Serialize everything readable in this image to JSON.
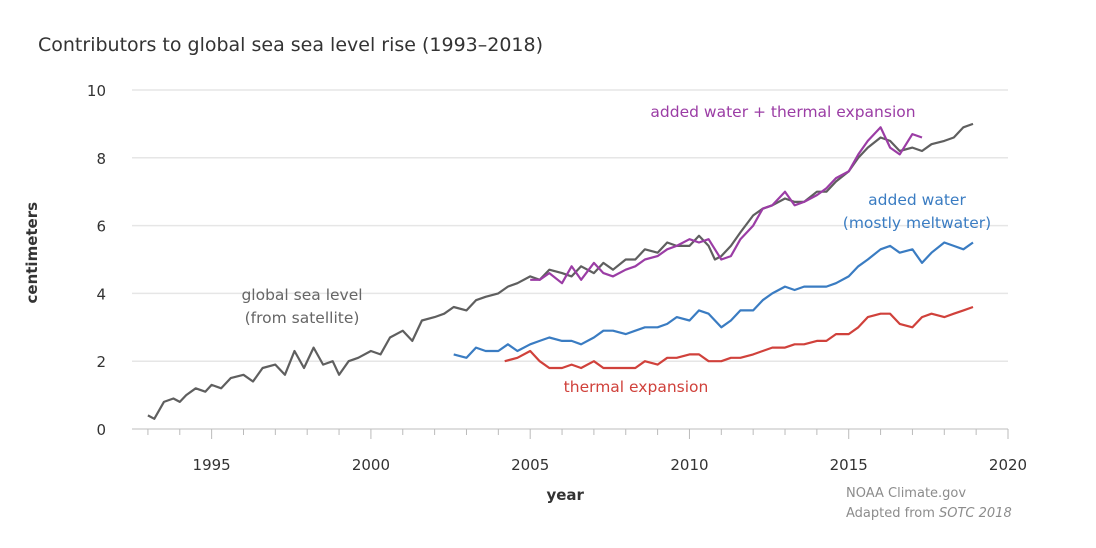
{
  "chart_data": {
    "type": "line",
    "title": "Contributors to global sea sea level rise (1993–2018)",
    "xlabel": "year",
    "ylabel": "centimeters",
    "xlim": [
      1992.5,
      2020
    ],
    "ylim": [
      0,
      10
    ],
    "xticks": [
      1995,
      2000,
      2005,
      2010,
      2015,
      2020
    ],
    "yticks": [
      0,
      2,
      4,
      6,
      8,
      10
    ],
    "grid": "horizontal",
    "legend": "none (direct labels on series)",
    "series": [
      {
        "name": "global sea level (from satellite)",
        "label_lines": [
          "global sea level",
          "(from satellite)"
        ],
        "color": "#5f5f5f",
        "x": [
          1993.0,
          1993.2,
          1993.5,
          1993.8,
          1994.0,
          1994.2,
          1994.5,
          1994.8,
          1995.0,
          1995.3,
          1995.6,
          1996.0,
          1996.3,
          1996.6,
          1997.0,
          1997.3,
          1997.6,
          1997.9,
          1998.2,
          1998.5,
          1998.8,
          1999.0,
          1999.3,
          1999.6,
          2000.0,
          2000.3,
          2000.6,
          2001.0,
          2001.3,
          2001.6,
          2002.0,
          2002.3,
          2002.6,
          2003.0,
          2003.3,
          2003.6,
          2004.0,
          2004.3,
          2004.6,
          2005.0,
          2005.3,
          2005.6,
          2006.0,
          2006.3,
          2006.6,
          2007.0,
          2007.3,
          2007.6,
          2008.0,
          2008.3,
          2008.6,
          2009.0,
          2009.3,
          2009.6,
          2010.0,
          2010.3,
          2010.6,
          2010.8,
          2011.0,
          2011.3,
          2011.6,
          2012.0,
          2012.3,
          2012.6,
          2013.0,
          2013.3,
          2013.6,
          2014.0,
          2014.3,
          2014.6,
          2015.0,
          2015.3,
          2015.6,
          2016.0,
          2016.3,
          2016.6,
          2017.0,
          2017.3,
          2017.6,
          2018.0,
          2018.3,
          2018.6,
          2018.9
        ],
        "y": [
          0.4,
          0.3,
          0.8,
          0.9,
          0.8,
          1.0,
          1.2,
          1.1,
          1.3,
          1.2,
          1.5,
          1.6,
          1.4,
          1.8,
          1.9,
          1.6,
          2.3,
          1.8,
          2.4,
          1.9,
          2.0,
          1.6,
          2.0,
          2.1,
          2.3,
          2.2,
          2.7,
          2.9,
          2.6,
          3.2,
          3.3,
          3.4,
          3.6,
          3.5,
          3.8,
          3.9,
          4.0,
          4.2,
          4.3,
          4.5,
          4.4,
          4.7,
          4.6,
          4.5,
          4.8,
          4.6,
          4.9,
          4.7,
          5.0,
          5.0,
          5.3,
          5.2,
          5.5,
          5.4,
          5.4,
          5.7,
          5.4,
          5.0,
          5.1,
          5.4,
          5.8,
          6.3,
          6.5,
          6.6,
          6.8,
          6.7,
          6.7,
          7.0,
          7.0,
          7.3,
          7.6,
          8.0,
          8.3,
          8.6,
          8.5,
          8.2,
          8.3,
          8.2,
          8.4,
          8.5,
          8.6,
          8.9,
          9.0
        ]
      },
      {
        "name": "added water + thermal expansion",
        "color": "#9b3da5",
        "x": [
          2005.0,
          2005.3,
          2005.6,
          2006.0,
          2006.3,
          2006.6,
          2007.0,
          2007.3,
          2007.6,
          2008.0,
          2008.3,
          2008.6,
          2009.0,
          2009.3,
          2009.6,
          2010.0,
          2010.3,
          2010.6,
          2011.0,
          2011.3,
          2011.6,
          2012.0,
          2012.3,
          2012.6,
          2013.0,
          2013.3,
          2013.6,
          2014.0,
          2014.3,
          2014.6,
          2015.0,
          2015.3,
          2015.6,
          2016.0,
          2016.3,
          2016.6,
          2017.0,
          2017.3
        ],
        "y": [
          4.4,
          4.4,
          4.6,
          4.3,
          4.8,
          4.4,
          4.9,
          4.6,
          4.5,
          4.7,
          4.8,
          5.0,
          5.1,
          5.3,
          5.4,
          5.6,
          5.5,
          5.6,
          5.0,
          5.1,
          5.6,
          6.0,
          6.5,
          6.6,
          7.0,
          6.6,
          6.7,
          6.9,
          7.1,
          7.4,
          7.6,
          8.1,
          8.5,
          8.9,
          8.3,
          8.1,
          8.7,
          8.6
        ]
      },
      {
        "name": "added water (mostly meltwater)",
        "label_lines": [
          "added water",
          "(mostly meltwater)"
        ],
        "color": "#3a7cc2",
        "x": [
          2002.6,
          2003.0,
          2003.3,
          2003.6,
          2004.0,
          2004.3,
          2004.6,
          2005.0,
          2005.3,
          2005.6,
          2006.0,
          2006.3,
          2006.6,
          2007.0,
          2007.3,
          2007.6,
          2008.0,
          2008.3,
          2008.6,
          2009.0,
          2009.3,
          2009.6,
          2010.0,
          2010.3,
          2010.6,
          2011.0,
          2011.3,
          2011.6,
          2012.0,
          2012.3,
          2012.6,
          2013.0,
          2013.3,
          2013.6,
          2014.0,
          2014.3,
          2014.6,
          2015.0,
          2015.3,
          2015.6,
          2016.0,
          2016.3,
          2016.6,
          2017.0,
          2017.3,
          2017.6,
          2018.0,
          2018.3,
          2018.6,
          2018.9
        ],
        "y": [
          2.2,
          2.1,
          2.4,
          2.3,
          2.3,
          2.5,
          2.3,
          2.5,
          2.6,
          2.7,
          2.6,
          2.6,
          2.5,
          2.7,
          2.9,
          2.9,
          2.8,
          2.9,
          3.0,
          3.0,
          3.1,
          3.3,
          3.2,
          3.5,
          3.4,
          3.0,
          3.2,
          3.5,
          3.5,
          3.8,
          4.0,
          4.2,
          4.1,
          4.2,
          4.2,
          4.2,
          4.3,
          4.5,
          4.8,
          5.0,
          5.3,
          5.4,
          5.2,
          5.3,
          4.9,
          5.2,
          5.5,
          5.4,
          5.3,
          5.5
        ]
      },
      {
        "name": "thermal expansion",
        "color": "#d0413b",
        "x": [
          2004.2,
          2004.6,
          2005.0,
          2005.3,
          2005.6,
          2006.0,
          2006.3,
          2006.6,
          2007.0,
          2007.3,
          2007.6,
          2008.0,
          2008.3,
          2008.6,
          2009.0,
          2009.3,
          2009.6,
          2010.0,
          2010.3,
          2010.6,
          2011.0,
          2011.3,
          2011.6,
          2012.0,
          2012.3,
          2012.6,
          2013.0,
          2013.3,
          2013.6,
          2014.0,
          2014.3,
          2014.6,
          2015.0,
          2015.3,
          2015.6,
          2016.0,
          2016.3,
          2016.6,
          2017.0,
          2017.3,
          2017.6,
          2018.0,
          2018.3,
          2018.6,
          2018.9
        ],
        "y": [
          2.0,
          2.1,
          2.3,
          2.0,
          1.8,
          1.8,
          1.9,
          1.8,
          2.0,
          1.8,
          1.8,
          1.8,
          1.8,
          2.0,
          1.9,
          2.1,
          2.1,
          2.2,
          2.2,
          2.0,
          2.0,
          2.1,
          2.1,
          2.2,
          2.3,
          2.4,
          2.4,
          2.5,
          2.5,
          2.6,
          2.6,
          2.8,
          2.8,
          3.0,
          3.3,
          3.4,
          3.4,
          3.1,
          3.0,
          3.3,
          3.4,
          3.3,
          3.4,
          3.5,
          3.6
        ]
      }
    ]
  },
  "credit": {
    "line1": "NOAA Climate.gov",
    "line2_prefix": "Adapted from ",
    "line2_italic": "SOTC 2018"
  }
}
